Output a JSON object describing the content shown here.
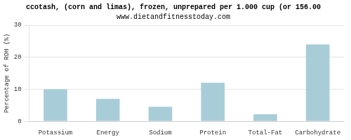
{
  "chart_data": {
    "type": "bar",
    "title": "ccotash, (corn and limas), frozen, unprepared per 1.000 cup (or 156.00",
    "subtitle": "www.dietandfitnesstoday.com",
    "categories": [
      "Potassium",
      "Energy",
      "Sodium",
      "Protein",
      "Total-Fat",
      "Carbohydrate"
    ],
    "values": [
      10,
      7,
      4.5,
      12,
      2.2,
      24
    ],
    "color": "#a8cdd8",
    "ylabel": "Percentage of RDH (%)",
    "ylim": [
      0,
      30
    ],
    "yticks": [
      0,
      10,
      20,
      30
    ],
    "grid": true
  }
}
